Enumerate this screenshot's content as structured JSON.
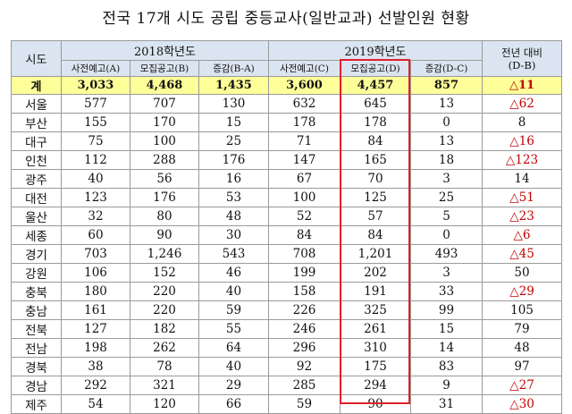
{
  "title": "전국 17개 시도 공립 중등교사(일반교과) 선발인원 현황",
  "header": {
    "sido": "시도",
    "year2018": "2018학년도",
    "year2019": "2019학년도",
    "diff": "전년 대비",
    "diff_sub": "(D-B)",
    "sub": [
      "사전예고(A)",
      "모집공고(B)",
      "증감(B-A)",
      "사전예고(C)",
      "모집공고(D)",
      "증감(D-C)"
    ]
  },
  "total": {
    "label": "계",
    "cells": [
      "3,033",
      "4,468",
      "1,435",
      "3,600",
      "4,457",
      "857"
    ],
    "diff": "△11"
  },
  "rows": [
    {
      "region": "서울",
      "cells": [
        "577",
        "707",
        "130",
        "632",
        "645",
        "13"
      ],
      "diff": "△62"
    },
    {
      "region": "부산",
      "cells": [
        "155",
        "170",
        "15",
        "178",
        "178",
        "0"
      ],
      "diff": "8"
    },
    {
      "region": "대구",
      "cells": [
        "75",
        "100",
        "25",
        "71",
        "84",
        "13"
      ],
      "diff": "△16"
    },
    {
      "region": "인천",
      "cells": [
        "112",
        "288",
        "176",
        "147",
        "165",
        "18"
      ],
      "diff": "△123"
    },
    {
      "region": "광주",
      "cells": [
        "40",
        "56",
        "16",
        "67",
        "70",
        "3"
      ],
      "diff": "14"
    },
    {
      "region": "대전",
      "cells": [
        "123",
        "176",
        "53",
        "100",
        "125",
        "25"
      ],
      "diff": "△51"
    },
    {
      "region": "울산",
      "cells": [
        "32",
        "80",
        "48",
        "52",
        "57",
        "5"
      ],
      "diff": "△23"
    },
    {
      "region": "세종",
      "cells": [
        "60",
        "90",
        "30",
        "84",
        "84",
        "0"
      ],
      "diff": "△6"
    },
    {
      "region": "경기",
      "cells": [
        "703",
        "1,246",
        "543",
        "708",
        "1,201",
        "493"
      ],
      "diff": "△45"
    },
    {
      "region": "강원",
      "cells": [
        "106",
        "152",
        "46",
        "199",
        "202",
        "3"
      ],
      "diff": "50"
    },
    {
      "region": "충북",
      "cells": [
        "180",
        "220",
        "40",
        "158",
        "191",
        "33"
      ],
      "diff": "△29"
    },
    {
      "region": "충남",
      "cells": [
        "161",
        "220",
        "59",
        "226",
        "325",
        "99"
      ],
      "diff": "105"
    },
    {
      "region": "전북",
      "cells": [
        "127",
        "182",
        "55",
        "246",
        "261",
        "15"
      ],
      "diff": "79"
    },
    {
      "region": "전남",
      "cells": [
        "198",
        "262",
        "64",
        "296",
        "310",
        "14"
      ],
      "diff": "48"
    },
    {
      "region": "경북",
      "cells": [
        "38",
        "78",
        "40",
        "92",
        "175",
        "83"
      ],
      "diff": "97"
    },
    {
      "region": "경남",
      "cells": [
        "292",
        "321",
        "29",
        "285",
        "294",
        "9"
      ],
      "diff": "△27"
    },
    {
      "region": "제주",
      "cells": [
        "54",
        "120",
        "66",
        "59",
        "90",
        "31"
      ],
      "diff": "△30"
    }
  ],
  "colors": {
    "header_bg": "#dbe5f1",
    "total_bg": "#ffff99",
    "negative": "#c00000",
    "highlight_box": "#e0202a"
  }
}
